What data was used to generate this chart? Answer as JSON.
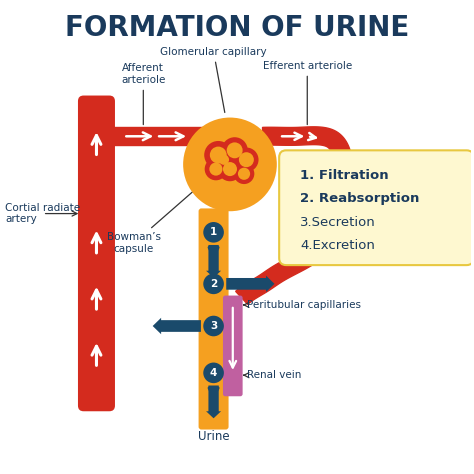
{
  "title": "FORMATION OF URINE",
  "title_color": "#1a3a5c",
  "title_fontsize": 20,
  "bg_color": "#ffffff",
  "label_color": "#1a3a5c",
  "red_color": "#d42b1e",
  "orange_color": "#f5a020",
  "dark_blue": "#1a4a6b",
  "purple_color": "#c060a0",
  "box_bg": "#fef8d0",
  "box_border": "#e8c840",
  "labels": {
    "glomerular": "Glomerular capillary",
    "afferent": "Afferent\narteriole",
    "efferent": "Efferent arteriole",
    "cortial": "Cortial radiate\nartery",
    "bowman": "Bowman’s\ncapsule",
    "peritubular": "Peritubular capillaries",
    "renal": "Renal vein",
    "urine": "Urine"
  },
  "steps": [
    "1. Filtration",
    "2. Reabsorption",
    "3.Secretion",
    "4.Excretion"
  ]
}
